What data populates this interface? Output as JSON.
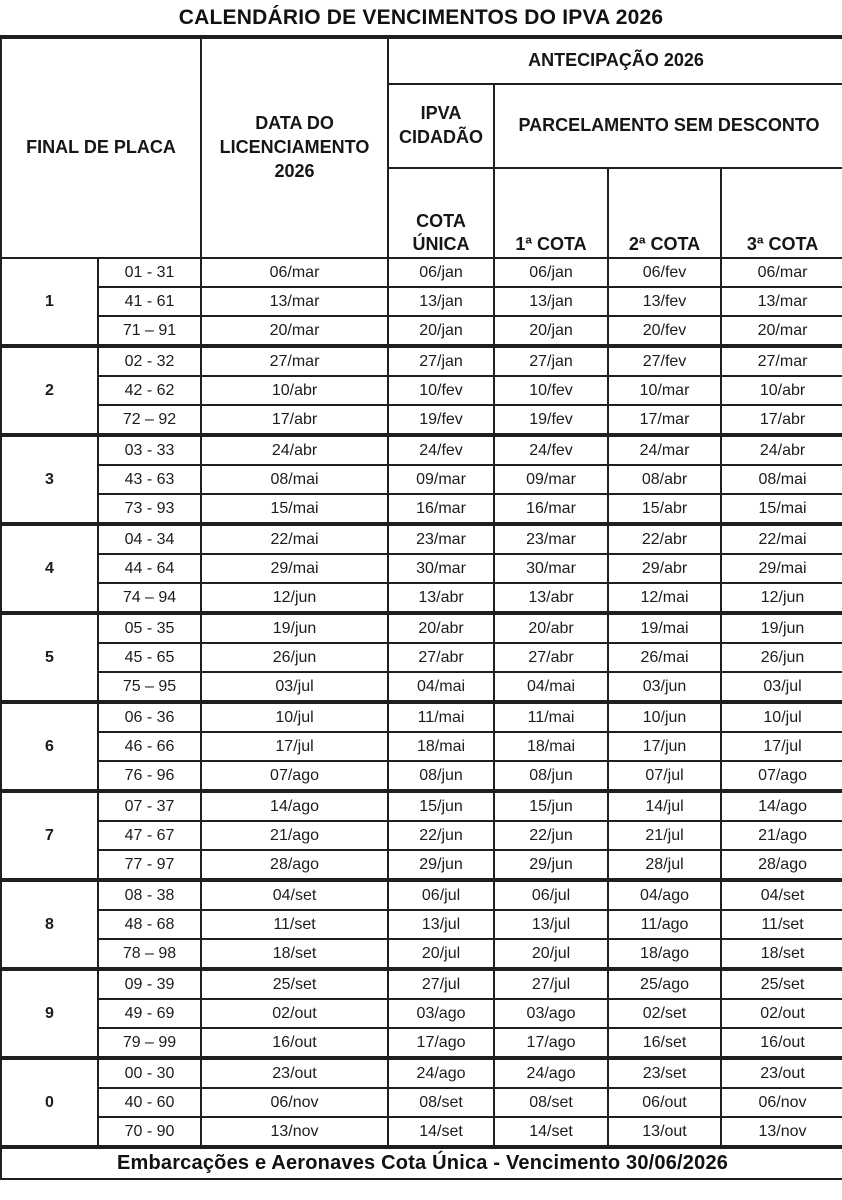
{
  "title": "CALENDÁRIO DE VENCIMENTOS DO IPVA 2026",
  "table": {
    "headers": {
      "final_de_placa": "FINAL DE PLACA",
      "data_licenciamento": "DATA DO\nLICENCIAMENTO\n2026",
      "antecipacao": "ANTECIPAÇÃO 2026",
      "ipva_cidadao": "IPVA\nCIDADÃO",
      "parcelamento": "PARCELAMENTO SEM DESCONTO",
      "cota_unica": "COTA\nÚNICA",
      "cota1": "1ª COTA",
      "cota2": "2ª COTA",
      "cota3": "3ª COTA"
    },
    "column_semantics": [
      "final de placa (dígito)",
      "faixa de placa",
      "data do licenciamento 2026",
      "cota única (ipva cidadão)",
      "1ª cota",
      "2ª cota",
      "3ª cota"
    ],
    "groups": [
      {
        "digit": "1",
        "rows": [
          [
            "01 - 31",
            "06/mar",
            "06/jan",
            "06/jan",
            "06/fev",
            "06/mar"
          ],
          [
            "41 - 61",
            "13/mar",
            "13/jan",
            "13/jan",
            "13/fev",
            "13/mar"
          ],
          [
            "71 – 91",
            "20/mar",
            "20/jan",
            "20/jan",
            "20/fev",
            "20/mar"
          ]
        ]
      },
      {
        "digit": "2",
        "rows": [
          [
            "02 - 32",
            "27/mar",
            "27/jan",
            "27/jan",
            "27/fev",
            "27/mar"
          ],
          [
            "42 - 62",
            "10/abr",
            "10/fev",
            "10/fev",
            "10/mar",
            "10/abr"
          ],
          [
            "72 – 92",
            "17/abr",
            "19/fev",
            "19/fev",
            "17/mar",
            "17/abr"
          ]
        ]
      },
      {
        "digit": "3",
        "rows": [
          [
            "03 - 33",
            "24/abr",
            "24/fev",
            "24/fev",
            "24/mar",
            "24/abr"
          ],
          [
            "43 - 63",
            "08/mai",
            "09/mar",
            "09/mar",
            "08/abr",
            "08/mai"
          ],
          [
            "73 - 93",
            "15/mai",
            "16/mar",
            "16/mar",
            "15/abr",
            "15/mai"
          ]
        ]
      },
      {
        "digit": "4",
        "rows": [
          [
            "04 - 34",
            "22/mai",
            "23/mar",
            "23/mar",
            "22/abr",
            "22/mai"
          ],
          [
            "44 - 64",
            "29/mai",
            "30/mar",
            "30/mar",
            "29/abr",
            "29/mai"
          ],
          [
            "74 – 94",
            "12/jun",
            "13/abr",
            "13/abr",
            "12/mai",
            "12/jun"
          ]
        ]
      },
      {
        "digit": "5",
        "rows": [
          [
            "05 - 35",
            "19/jun",
            "20/abr",
            "20/abr",
            "19/mai",
            "19/jun"
          ],
          [
            "45 - 65",
            "26/jun",
            "27/abr",
            "27/abr",
            "26/mai",
            "26/jun"
          ],
          [
            "75 – 95",
            "03/jul",
            "04/mai",
            "04/mai",
            "03/jun",
            "03/jul"
          ]
        ]
      },
      {
        "digit": "6",
        "rows": [
          [
            "06 - 36",
            "10/jul",
            "11/mai",
            "11/mai",
            "10/jun",
            "10/jul"
          ],
          [
            "46 - 66",
            "17/jul",
            "18/mai",
            "18/mai",
            "17/jun",
            "17/jul"
          ],
          [
            "76 - 96",
            "07/ago",
            "08/jun",
            "08/jun",
            "07/jul",
            "07/ago"
          ]
        ]
      },
      {
        "digit": "7",
        "rows": [
          [
            "07 - 37",
            "14/ago",
            "15/jun",
            "15/jun",
            "14/jul",
            "14/ago"
          ],
          [
            "47 - 67",
            "21/ago",
            "22/jun",
            "22/jun",
            "21/jul",
            "21/ago"
          ],
          [
            "77 - 97",
            "28/ago",
            "29/jun",
            "29/jun",
            "28/jul",
            "28/ago"
          ]
        ]
      },
      {
        "digit": "8",
        "rows": [
          [
            "08 - 38",
            "04/set",
            "06/jul",
            "06/jul",
            "04/ago",
            "04/set"
          ],
          [
            "48 - 68",
            "11/set",
            "13/jul",
            "13/jul",
            "11/ago",
            "11/set"
          ],
          [
            "78 – 98",
            "18/set",
            "20/jul",
            "20/jul",
            "18/ago",
            "18/set"
          ]
        ]
      },
      {
        "digit": "9",
        "rows": [
          [
            "09 - 39",
            "25/set",
            "27/jul",
            "27/jul",
            "25/ago",
            "25/set"
          ],
          [
            "49 - 69",
            "02/out",
            "03/ago",
            "03/ago",
            "02/set",
            "02/out"
          ],
          [
            "79 – 99",
            "16/out",
            "17/ago",
            "17/ago",
            "16/set",
            "16/out"
          ]
        ]
      },
      {
        "digit": "0",
        "rows": [
          [
            "00 - 30",
            "23/out",
            "24/ago",
            "24/ago",
            "23/set",
            "23/out"
          ],
          [
            "40 - 60",
            "06/nov",
            "08/set",
            "08/set",
            "06/out",
            "06/nov"
          ],
          [
            "70 - 90",
            "13/nov",
            "14/set",
            "14/set",
            "13/out",
            "13/nov"
          ]
        ]
      }
    ]
  },
  "footer": "Embarcações e Aeronaves Cota Única - Vencimento 30/06/2026",
  "colors": {
    "border": "#1f1f1f",
    "text": "#1a1a1a",
    "background": "#ffffff"
  }
}
